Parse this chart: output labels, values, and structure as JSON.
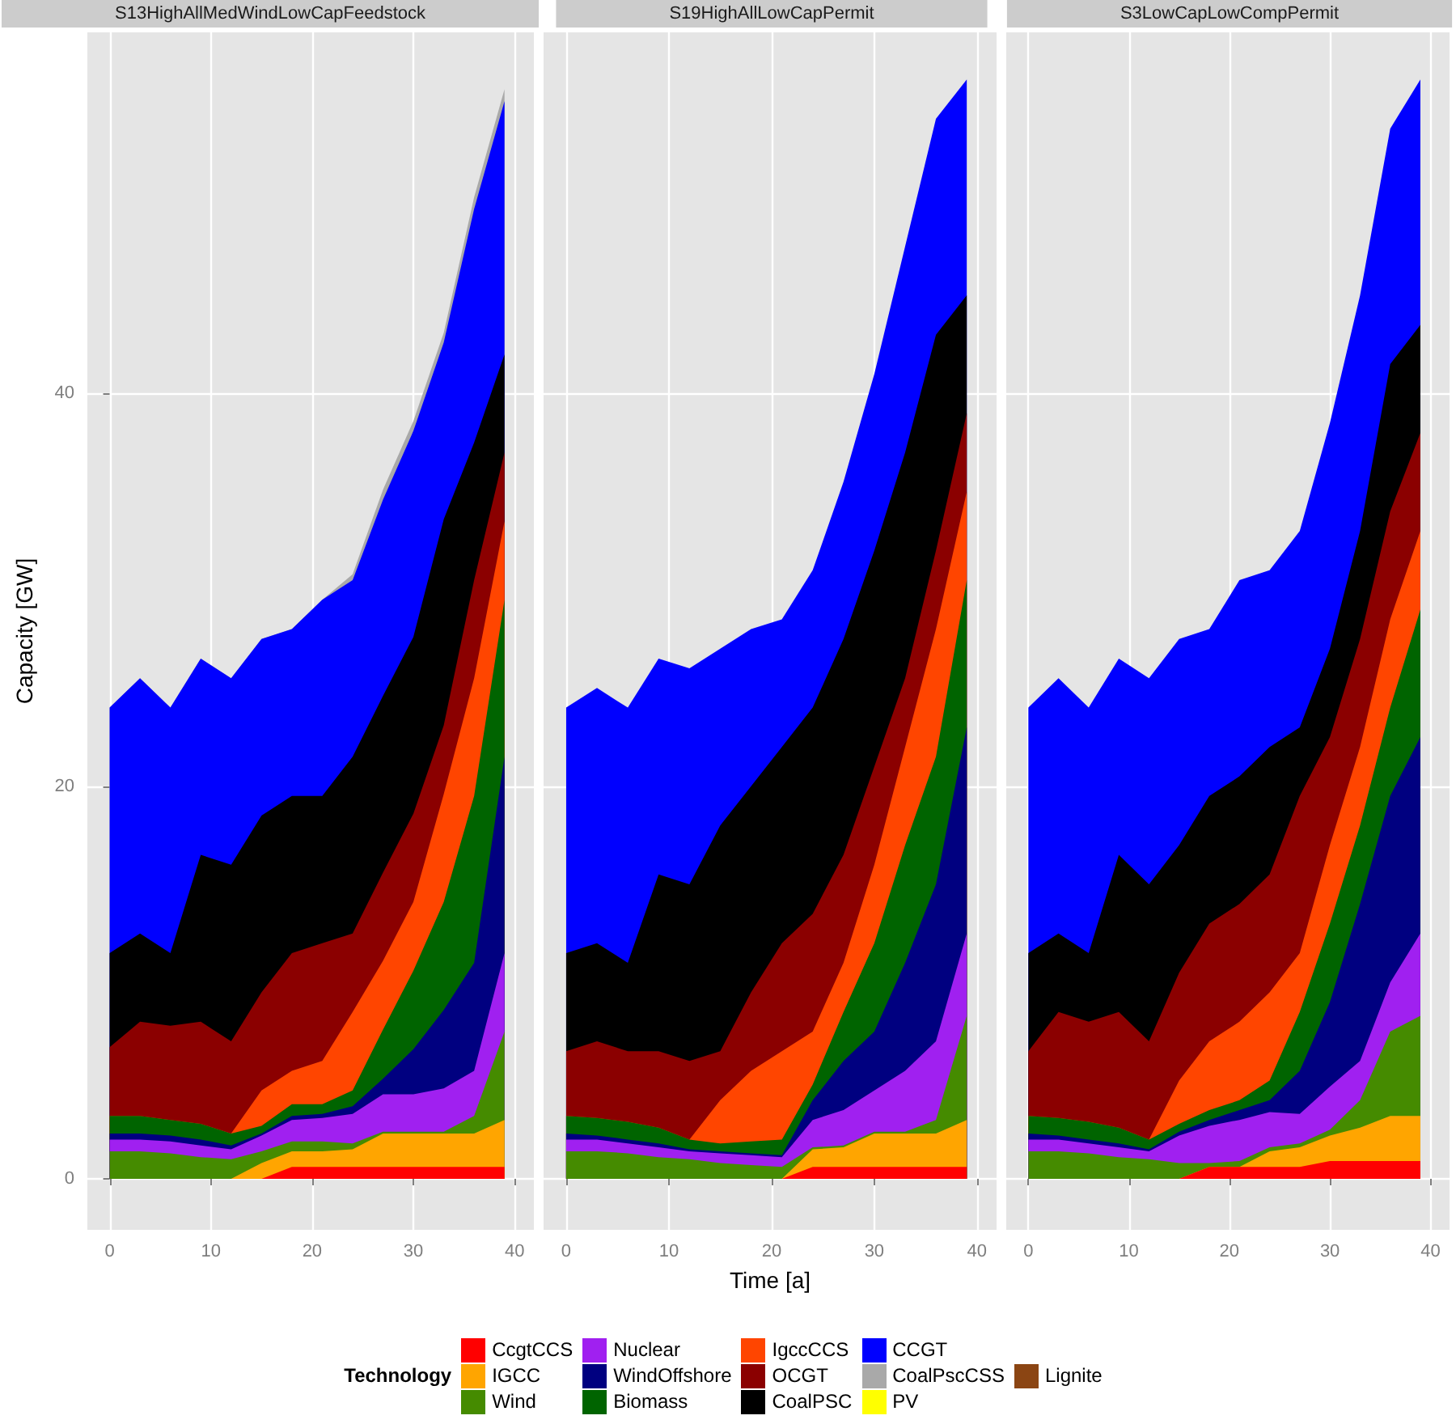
{
  "chart_data": [
    {
      "type": "area",
      "title": "S13HighAllMedWindLowCapFeedstock",
      "ylabel": "Capacity [GW]",
      "stacked": true,
      "grid": true,
      "legend": "bottom",
      "legend_title": "Technology",
      "x": [
        0,
        3,
        6,
        9,
        12,
        15,
        18,
        21,
        24,
        27,
        30,
        33,
        36,
        39
      ],
      "xlim": [
        -2.2,
        41.9
      ],
      "xticks": [
        0,
        10,
        20,
        30,
        40
      ],
      "ylim": [
        -2.6,
        58.4
      ],
      "yticks": [
        0,
        20,
        40
      ],
      "series": [
        {
          "name": "CcgtCCS",
          "color": "#ff0000",
          "values": [
            0,
            0,
            0,
            0,
            0,
            0,
            0.6,
            0.6,
            0.6,
            0.6,
            0.6,
            0.6,
            0.6,
            0.6
          ]
        },
        {
          "name": "IGCC",
          "color": "#ffa500",
          "values": [
            0,
            0,
            0,
            0,
            0,
            0.8,
            0.8,
            0.8,
            0.9,
            1.7,
            1.7,
            1.7,
            1.7,
            2.4
          ]
        },
        {
          "name": "Wind",
          "color": "#458b00",
          "values": [
            1.4,
            1.4,
            1.3,
            1.1,
            1.0,
            0.6,
            0.5,
            0.5,
            0.3,
            0.1,
            0.1,
            0.1,
            0.9,
            4.5
          ]
        },
        {
          "name": "Nuclear",
          "color": "#a020f0",
          "values": [
            0.6,
            0.6,
            0.6,
            0.6,
            0.5,
            0.8,
            1.1,
            1.2,
            1.5,
            1.9,
            1.9,
            2.2,
            2.3,
            4.0
          ]
        },
        {
          "name": "WindOffshore",
          "color": "#000080",
          "values": [
            0.3,
            0.3,
            0.3,
            0.3,
            0.2,
            0.1,
            0.2,
            0.2,
            0.4,
            0.8,
            2.3,
            4.0,
            5.5,
            10.0
          ]
        },
        {
          "name": "Biomass",
          "color": "#006400",
          "values": [
            0.9,
            0.9,
            0.8,
            0.8,
            0.6,
            0.4,
            0.6,
            0.5,
            0.8,
            2.5,
            4.0,
            5.5,
            8.5,
            8.0
          ]
        },
        {
          "name": "IgccCCS",
          "color": "#ff4500",
          "values": [
            0,
            0,
            0,
            0,
            0,
            1.8,
            1.7,
            2.2,
            4.0,
            3.5,
            3.5,
            5.5,
            6.0,
            4.0
          ]
        },
        {
          "name": "OCGT",
          "color": "#8b0000",
          "values": [
            3.5,
            4.8,
            4.8,
            5.2,
            4.7,
            5.0,
            6.0,
            6.0,
            4.0,
            4.5,
            4.5,
            3.5,
            5.0,
            3.5
          ]
        },
        {
          "name": "CoalPSC",
          "color": "#000000",
          "values": [
            4.8,
            4.5,
            3.7,
            8.5,
            9.0,
            9.0,
            8.0,
            7.5,
            9.0,
            9.0,
            9.0,
            10.5,
            7.0,
            5.0
          ]
        },
        {
          "name": "CCGT",
          "color": "#0000ff",
          "values": [
            12.5,
            13,
            12.5,
            10,
            9.5,
            9,
            8.5,
            10,
            9,
            10,
            10.5,
            9,
            11.9,
            12.9
          ]
        },
        {
          "name": "CoalPscCSS",
          "color": "#a9a9a9",
          "values": [
            0,
            0,
            0,
            0,
            0,
            0,
            0,
            0,
            0.3,
            0.5,
            0.5,
            0.5,
            0.6,
            0.6
          ]
        },
        {
          "name": "PV",
          "color": "#ffff00",
          "values": [
            null,
            null,
            null,
            null,
            null,
            null,
            null,
            null,
            null,
            null,
            null,
            null,
            null,
            null
          ]
        },
        {
          "name": "Lignite",
          "color": "#8b4513",
          "values": [
            null,
            null,
            null,
            null,
            null,
            null,
            null,
            null,
            null,
            null,
            null,
            null,
            null,
            null
          ]
        }
      ]
    },
    {
      "type": "area",
      "title": "S19HighAllLowCapPermit",
      "xlabel": "Time [a]",
      "stacked": true,
      "grid": true,
      "tick_labels": "x",
      "x": [
        0,
        3,
        6,
        9,
        12,
        15,
        18,
        21,
        24,
        27,
        30,
        33,
        36,
        39
      ],
      "xlim": [
        -2.2,
        41.9
      ],
      "xticks": [
        0,
        10,
        20,
        30,
        40
      ],
      "ylim": [
        -2.6,
        58.4
      ],
      "yticks": [
        0,
        20,
        40
      ],
      "series": [
        {
          "color": "#ff0000",
          "values": [
            0,
            0,
            0,
            0,
            0,
            0,
            0,
            0,
            0.6,
            0.6,
            0.6,
            0.6,
            0.6,
            0.6
          ]
        },
        {
          "color": "#ffa500",
          "values": [
            0,
            0,
            0,
            0,
            0,
            0,
            0,
            0,
            0.9,
            1.0,
            1.7,
            1.7,
            1.7,
            2.4
          ]
        },
        {
          "color": "#458b00",
          "values": [
            1.4,
            1.4,
            1.3,
            1.1,
            1.0,
            0.8,
            0.7,
            0.6,
            0.1,
            0.1,
            0.1,
            0.1,
            0.7,
            5.3
          ]
        },
        {
          "color": "#a020f0",
          "values": [
            0.6,
            0.6,
            0.5,
            0.5,
            0.4,
            0.5,
            0.5,
            0.5,
            1.4,
            1.8,
            2.1,
            3.1,
            4.0,
            4.2
          ]
        },
        {
          "color": "#000080",
          "values": [
            0.3,
            0.2,
            0.2,
            0.2,
            0.1,
            0.1,
            0.1,
            0.1,
            1.0,
            2.5,
            3.0,
            5.5,
            8.0,
            10.5
          ]
        },
        {
          "color": "#006400",
          "values": [
            0.9,
            0.9,
            0.9,
            0.8,
            0.5,
            0.4,
            0.6,
            0.8,
            0.8,
            2.5,
            4.5,
            6.0,
            6.5,
            7.5
          ]
        },
        {
          "color": "#ff4500",
          "values": [
            0,
            0,
            0,
            0,
            0,
            2.2,
            3.6,
            4.5,
            2.7,
            2.5,
            4.0,
            5.0,
            6.5,
            4.5
          ]
        },
        {
          "color": "#8b0000",
          "values": [
            3.3,
            3.9,
            3.6,
            3.9,
            4.0,
            2.5,
            4.0,
            5.5,
            6.0,
            5.5,
            5.0,
            3.5,
            4.0,
            4.0
          ]
        },
        {
          "color": "#000000",
          "values": [
            5.0,
            5.0,
            4.5,
            9.0,
            9.0,
            11.5,
            10.5,
            10.0,
            10.5,
            11.0,
            11.0,
            11.5,
            11.0,
            6.0
          ]
        },
        {
          "color": "#0000ff",
          "values": [
            12.5,
            13,
            13,
            11,
            11,
            9,
            8,
            6.5,
            7,
            8,
            9,
            10.5,
            11,
            11
          ]
        }
      ]
    },
    {
      "type": "area",
      "title": "S3LowCapLowCompPermit",
      "stacked": true,
      "grid": true,
      "tick_labels": "x",
      "x": [
        0,
        3,
        6,
        9,
        12,
        15,
        18,
        21,
        24,
        27,
        30,
        33,
        36,
        39
      ],
      "xlim": [
        -2.2,
        41.9
      ],
      "xticks": [
        0,
        10,
        20,
        30,
        40
      ],
      "ylim": [
        -2.6,
        58.4
      ],
      "yticks": [
        0,
        20,
        40
      ],
      "series": [
        {
          "color": "#ff0000",
          "values": [
            0,
            0,
            0,
            0,
            0,
            0,
            0.6,
            0.6,
            0.6,
            0.6,
            0.9,
            0.9,
            0.9,
            0.9
          ]
        },
        {
          "color": "#ffa500",
          "values": [
            0,
            0,
            0,
            0,
            0,
            0,
            0,
            0,
            0.8,
            1.0,
            1.3,
            1.7,
            2.3,
            2.3
          ]
        },
        {
          "color": "#458b00",
          "values": [
            1.4,
            1.4,
            1.3,
            1.1,
            1.0,
            0.8,
            0.2,
            0.3,
            0.2,
            0.2,
            0.3,
            1.4,
            4.3,
            5.1
          ]
        },
        {
          "color": "#a020f0",
          "values": [
            0.6,
            0.6,
            0.5,
            0.5,
            0.4,
            1.4,
            1.9,
            2.1,
            1.8,
            1.5,
            2.2,
            2.0,
            2.5,
            4.2
          ]
        },
        {
          "color": "#000080",
          "values": [
            0.3,
            0.2,
            0.2,
            0.2,
            0.1,
            0.2,
            0.3,
            0.5,
            0.6,
            2.2,
            4.3,
            8.0,
            9.5,
            10.0
          ]
        },
        {
          "color": "#006400",
          "values": [
            0.9,
            0.9,
            0.9,
            0.8,
            0.5,
            0.4,
            0.5,
            0.5,
            1.0,
            3.0,
            4.0,
            4.0,
            4.5,
            6.5
          ]
        },
        {
          "color": "#ff4500",
          "values": [
            0,
            0,
            0,
            0,
            0,
            2.2,
            3.5,
            4.0,
            4.5,
            3.0,
            4.0,
            4.0,
            4.5,
            4.0
          ]
        },
        {
          "color": "#8b0000",
          "values": [
            3.3,
            5.4,
            5.1,
            5.9,
            5.0,
            5.5,
            6.0,
            6.0,
            6.0,
            8.0,
            5.5,
            5.5,
            5.5,
            5.0
          ]
        },
        {
          "color": "#000000",
          "values": [
            5.0,
            4.0,
            3.5,
            8.0,
            8.0,
            6.5,
            6.5,
            6.5,
            6.5,
            3.5,
            4.5,
            5.5,
            7.5,
            5.5
          ]
        },
        {
          "color": "#0000ff",
          "values": [
            12.5,
            13,
            12.5,
            10,
            10.5,
            10.5,
            8.5,
            10,
            9,
            10,
            11.5,
            12,
            12,
            12.5
          ]
        }
      ]
    }
  ]
}
